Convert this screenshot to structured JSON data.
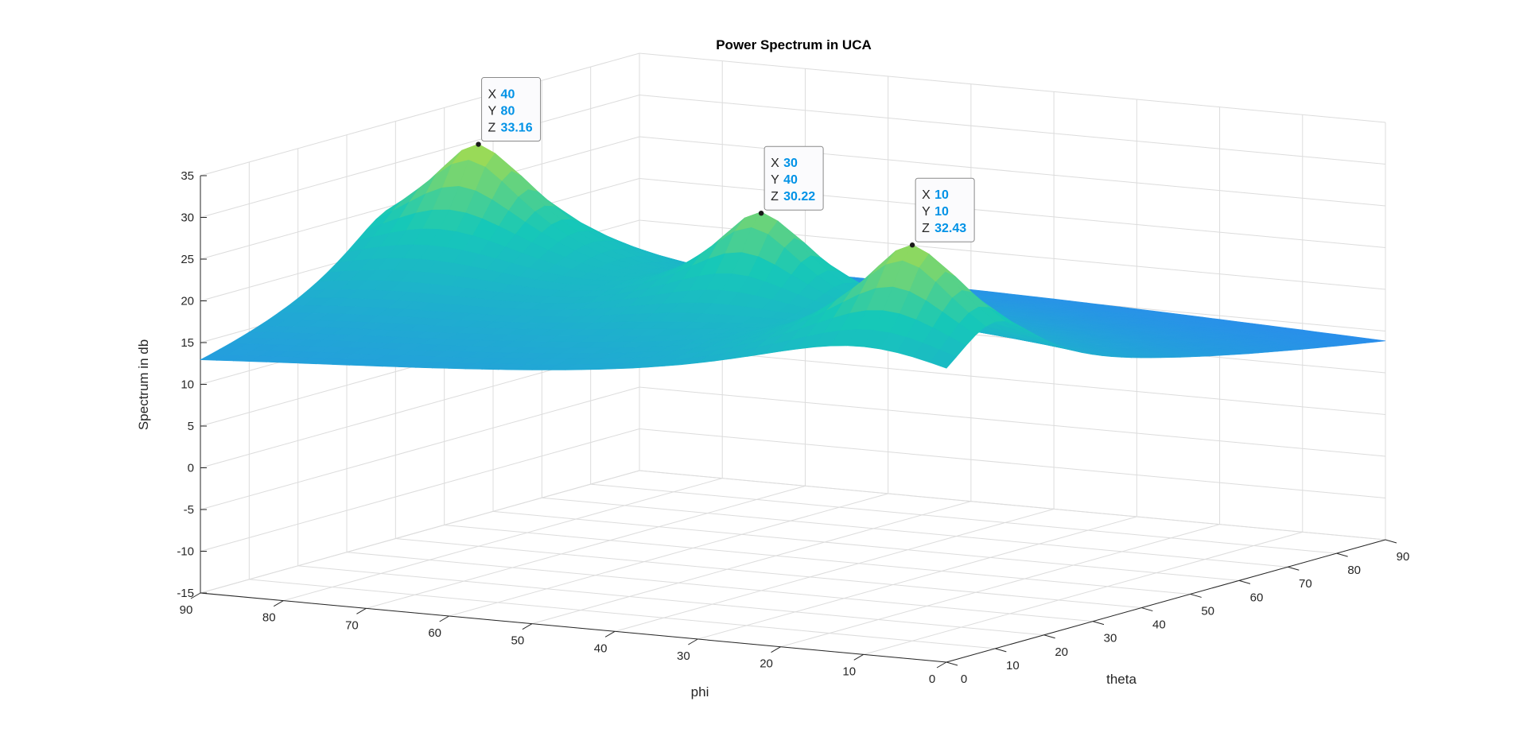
{
  "chart_data": {
    "type": "surface",
    "title": "Power Spectrum in UCA",
    "xlabel": "theta",
    "ylabel": "phi",
    "zlabel": "Spectrum in db",
    "xlim": [
      0,
      90
    ],
    "ylim": [
      0,
      90
    ],
    "zlim": [
      -15,
      35
    ],
    "x_ticks": [
      "0",
      "10",
      "20",
      "30",
      "40",
      "50",
      "60",
      "70",
      "80",
      "90"
    ],
    "y_ticks": [
      "0",
      "10",
      "20",
      "30",
      "40",
      "50",
      "60",
      "70",
      "80",
      "90"
    ],
    "z_ticks": [
      "35",
      "30",
      "25",
      "20",
      "15",
      "10",
      "5",
      "0",
      "-5",
      "-10",
      "-15"
    ],
    "grid": true,
    "colormap": "parula",
    "peaks": [
      {
        "x": 40,
        "y": 80,
        "z": 33.16
      },
      {
        "x": 30,
        "y": 40,
        "z": 30.22
      },
      {
        "x": 10,
        "y": 10,
        "z": 32.43
      }
    ],
    "datatips": [
      {
        "x": "40",
        "y": "80",
        "z": "33.16"
      },
      {
        "x": "30",
        "y": "40",
        "z": "30.22"
      },
      {
        "x": "10",
        "y": "10",
        "z": "32.43"
      }
    ],
    "datatip_keys": {
      "x": "X",
      "y": "Y",
      "z": "Z"
    },
    "colors": {
      "low": "#3e26a8",
      "mid": "#2a8dec",
      "high": "#16c8b8",
      "peak": "#cde132",
      "datatip_value": "#0092e6",
      "grid": "#dcdcdc",
      "axis": "#262626"
    }
  }
}
